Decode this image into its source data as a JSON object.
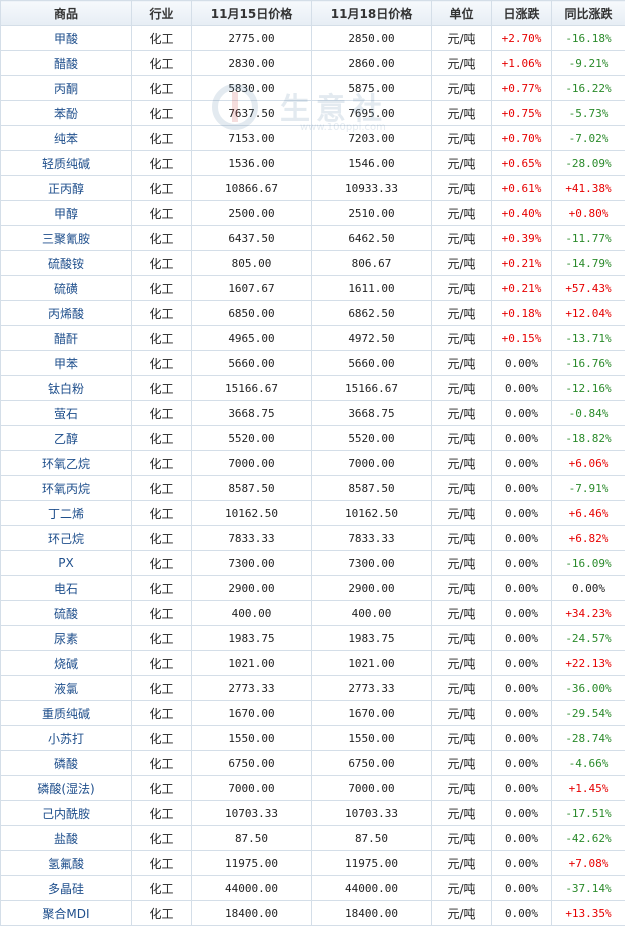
{
  "headers": [
    "商品",
    "行业",
    "11月15日价格",
    "11月18日价格",
    "单位",
    "日涨跌",
    "同比涨跌"
  ],
  "watermark": {
    "text": "生意社",
    "sub": "www.100ppi.com"
  },
  "rows": [
    {
      "name": "甲酸",
      "industry": "化工",
      "p1": "2775.00",
      "p2": "2850.00",
      "unit": "元/吨",
      "day": "+2.70%",
      "yoy": "-16.18%"
    },
    {
      "name": "醋酸",
      "industry": "化工",
      "p1": "2830.00",
      "p2": "2860.00",
      "unit": "元/吨",
      "day": "+1.06%",
      "yoy": "-9.21%"
    },
    {
      "name": "丙酮",
      "industry": "化工",
      "p1": "5830.00",
      "p2": "5875.00",
      "unit": "元/吨",
      "day": "+0.77%",
      "yoy": "-16.22%"
    },
    {
      "name": "苯酚",
      "industry": "化工",
      "p1": "7637.50",
      "p2": "7695.00",
      "unit": "元/吨",
      "day": "+0.75%",
      "yoy": "-5.73%"
    },
    {
      "name": "纯苯",
      "industry": "化工",
      "p1": "7153.00",
      "p2": "7203.00",
      "unit": "元/吨",
      "day": "+0.70%",
      "yoy": "-7.02%"
    },
    {
      "name": "轻质纯碱",
      "industry": "化工",
      "p1": "1536.00",
      "p2": "1546.00",
      "unit": "元/吨",
      "day": "+0.65%",
      "yoy": "-28.09%"
    },
    {
      "name": "正丙醇",
      "industry": "化工",
      "p1": "10866.67",
      "p2": "10933.33",
      "unit": "元/吨",
      "day": "+0.61%",
      "yoy": "+41.38%"
    },
    {
      "name": "甲醇",
      "industry": "化工",
      "p1": "2500.00",
      "p2": "2510.00",
      "unit": "元/吨",
      "day": "+0.40%",
      "yoy": "+0.80%"
    },
    {
      "name": "三聚氰胺",
      "industry": "化工",
      "p1": "6437.50",
      "p2": "6462.50",
      "unit": "元/吨",
      "day": "+0.39%",
      "yoy": "-11.77%"
    },
    {
      "name": "硫酸铵",
      "industry": "化工",
      "p1": "805.00",
      "p2": "806.67",
      "unit": "元/吨",
      "day": "+0.21%",
      "yoy": "-14.79%"
    },
    {
      "name": "硫磺",
      "industry": "化工",
      "p1": "1607.67",
      "p2": "1611.00",
      "unit": "元/吨",
      "day": "+0.21%",
      "yoy": "+57.43%"
    },
    {
      "name": "丙烯酸",
      "industry": "化工",
      "p1": "6850.00",
      "p2": "6862.50",
      "unit": "元/吨",
      "day": "+0.18%",
      "yoy": "+12.04%"
    },
    {
      "name": "醋酐",
      "industry": "化工",
      "p1": "4965.00",
      "p2": "4972.50",
      "unit": "元/吨",
      "day": "+0.15%",
      "yoy": "-13.71%"
    },
    {
      "name": "甲苯",
      "industry": "化工",
      "p1": "5660.00",
      "p2": "5660.00",
      "unit": "元/吨",
      "day": "0.00%",
      "yoy": "-16.76%"
    },
    {
      "name": "钛白粉",
      "industry": "化工",
      "p1": "15166.67",
      "p2": "15166.67",
      "unit": "元/吨",
      "day": "0.00%",
      "yoy": "-12.16%"
    },
    {
      "name": "萤石",
      "industry": "化工",
      "p1": "3668.75",
      "p2": "3668.75",
      "unit": "元/吨",
      "day": "0.00%",
      "yoy": "-0.84%"
    },
    {
      "name": "乙醇",
      "industry": "化工",
      "p1": "5520.00",
      "p2": "5520.00",
      "unit": "元/吨",
      "day": "0.00%",
      "yoy": "-18.82%"
    },
    {
      "name": "环氧乙烷",
      "industry": "化工",
      "p1": "7000.00",
      "p2": "7000.00",
      "unit": "元/吨",
      "day": "0.00%",
      "yoy": "+6.06%"
    },
    {
      "name": "环氧丙烷",
      "industry": "化工",
      "p1": "8587.50",
      "p2": "8587.50",
      "unit": "元/吨",
      "day": "0.00%",
      "yoy": "-7.91%"
    },
    {
      "name": "丁二烯",
      "industry": "化工",
      "p1": "10162.50",
      "p2": "10162.50",
      "unit": "元/吨",
      "day": "0.00%",
      "yoy": "+6.46%"
    },
    {
      "name": "环己烷",
      "industry": "化工",
      "p1": "7833.33",
      "p2": "7833.33",
      "unit": "元/吨",
      "day": "0.00%",
      "yoy": "+6.82%"
    },
    {
      "name": "PX",
      "industry": "化工",
      "p1": "7300.00",
      "p2": "7300.00",
      "unit": "元/吨",
      "day": "0.00%",
      "yoy": "-16.09%"
    },
    {
      "name": "电石",
      "industry": "化工",
      "p1": "2900.00",
      "p2": "2900.00",
      "unit": "元/吨",
      "day": "0.00%",
      "yoy": "0.00%"
    },
    {
      "name": "硫酸",
      "industry": "化工",
      "p1": "400.00",
      "p2": "400.00",
      "unit": "元/吨",
      "day": "0.00%",
      "yoy": "+34.23%"
    },
    {
      "name": "尿素",
      "industry": "化工",
      "p1": "1983.75",
      "p2": "1983.75",
      "unit": "元/吨",
      "day": "0.00%",
      "yoy": "-24.57%"
    },
    {
      "name": "烧碱",
      "industry": "化工",
      "p1": "1021.00",
      "p2": "1021.00",
      "unit": "元/吨",
      "day": "0.00%",
      "yoy": "+22.13%"
    },
    {
      "name": "液氯",
      "industry": "化工",
      "p1": "2773.33",
      "p2": "2773.33",
      "unit": "元/吨",
      "day": "0.00%",
      "yoy": "-36.00%"
    },
    {
      "name": "重质纯碱",
      "industry": "化工",
      "p1": "1670.00",
      "p2": "1670.00",
      "unit": "元/吨",
      "day": "0.00%",
      "yoy": "-29.54%"
    },
    {
      "name": "小苏打",
      "industry": "化工",
      "p1": "1550.00",
      "p2": "1550.00",
      "unit": "元/吨",
      "day": "0.00%",
      "yoy": "-28.74%"
    },
    {
      "name": "磷酸",
      "industry": "化工",
      "p1": "6750.00",
      "p2": "6750.00",
      "unit": "元/吨",
      "day": "0.00%",
      "yoy": "-4.66%"
    },
    {
      "name": "磷酸(湿法)",
      "industry": "化工",
      "p1": "7000.00",
      "p2": "7000.00",
      "unit": "元/吨",
      "day": "0.00%",
      "yoy": "+1.45%"
    },
    {
      "name": "己内酰胺",
      "industry": "化工",
      "p1": "10703.33",
      "p2": "10703.33",
      "unit": "元/吨",
      "day": "0.00%",
      "yoy": "-17.51%"
    },
    {
      "name": "盐酸",
      "industry": "化工",
      "p1": "87.50",
      "p2": "87.50",
      "unit": "元/吨",
      "day": "0.00%",
      "yoy": "-42.62%"
    },
    {
      "name": "氢氟酸",
      "industry": "化工",
      "p1": "11975.00",
      "p2": "11975.00",
      "unit": "元/吨",
      "day": "0.00%",
      "yoy": "+7.08%"
    },
    {
      "name": "多晶硅",
      "industry": "化工",
      "p1": "44000.00",
      "p2": "44000.00",
      "unit": "元/吨",
      "day": "0.00%",
      "yoy": "-37.14%"
    },
    {
      "name": "聚合MDI",
      "industry": "化工",
      "p1": "18400.00",
      "p2": "18400.00",
      "unit": "元/吨",
      "day": "0.00%",
      "yoy": "+13.35%"
    }
  ]
}
